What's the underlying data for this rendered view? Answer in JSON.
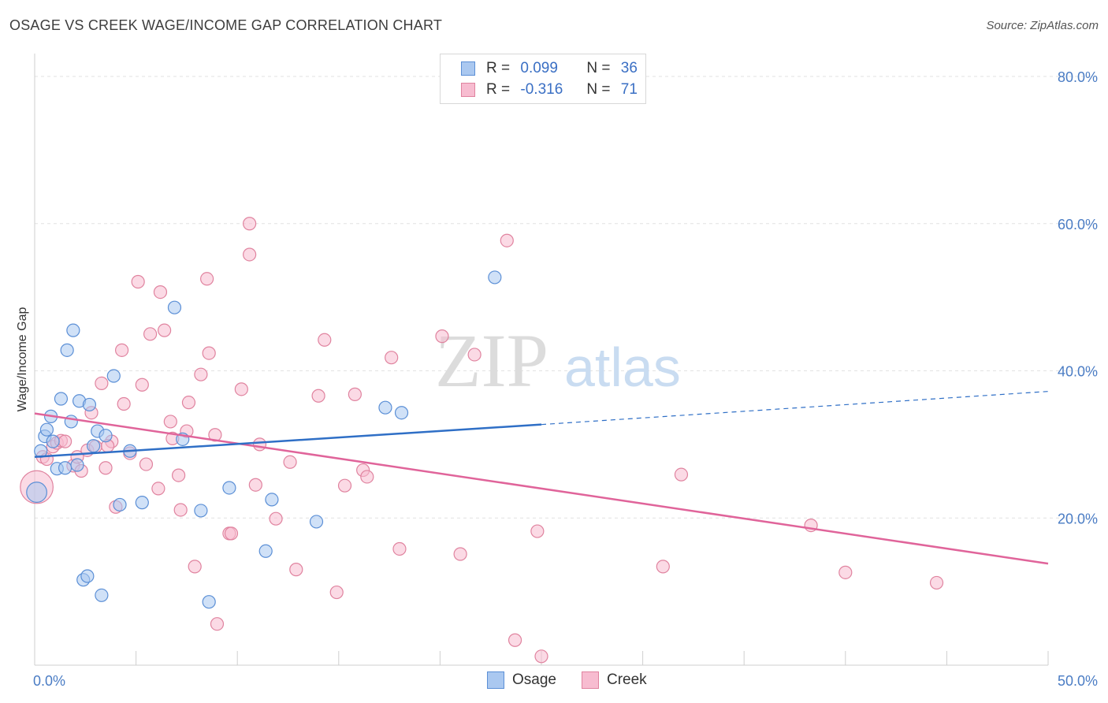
{
  "title": "OSAGE VS CREEK WAGE/INCOME GAP CORRELATION CHART",
  "source": "Source: ZipAtlas.com",
  "watermark": {
    "zip": "ZIP",
    "atlas": "atlas"
  },
  "legend_top": [
    {
      "r_label": "R =",
      "r_value": "0.099",
      "n_label": "N =",
      "n_value": "36"
    },
    {
      "r_label": "R =",
      "r_value": "-0.316",
      "n_label": "N =",
      "n_value": "71"
    }
  ],
  "legend_bottom": [
    "Osage",
    "Creek"
  ],
  "colors": {
    "osage_fill": "#aac8f0",
    "osage_stroke": "#5b8fd6",
    "osage_line": "#2f6fc6",
    "creek_fill": "#f7bcd0",
    "creek_stroke": "#e0839f",
    "creek_line": "#e0649a",
    "tick_text": "#4a7cc4",
    "grid": "#e2e2e2"
  },
  "chart_data": {
    "type": "scatter",
    "title": "OSAGE VS CREEK WAGE/INCOME GAP CORRELATION CHART",
    "xlabel": "",
    "ylabel": "Wage/Income Gap",
    "xlim": [
      0,
      50
    ],
    "ylim": [
      0,
      85
    ],
    "x_tick_labels": [
      "0.0%",
      "50.0%"
    ],
    "y_ticks": [
      20,
      40,
      60,
      80
    ],
    "y_tick_labels": [
      "20.0%",
      "40.0%",
      "60.0%",
      "80.0%"
    ],
    "grid": true,
    "legend_position": "top-center",
    "series": [
      {
        "name": "Osage",
        "r": 0.099,
        "n": 36,
        "trend": {
          "x0": 0,
          "y0": 28.3,
          "x1": 25,
          "y1": 32.7,
          "dashed_to_x": 50,
          "dashed_to_y": 37.2
        },
        "points": [
          [
            0.1,
            23.5,
            1.6
          ],
          [
            0.3,
            29.1,
            1
          ],
          [
            0.5,
            31.1,
            1
          ],
          [
            0.6,
            32.0,
            1
          ],
          [
            0.8,
            33.8,
            1
          ],
          [
            0.9,
            30.4,
            1
          ],
          [
            1.1,
            26.7,
            1
          ],
          [
            1.3,
            36.2,
            1
          ],
          [
            1.5,
            26.8,
            1
          ],
          [
            1.6,
            42.8,
            1
          ],
          [
            1.8,
            33.1,
            1
          ],
          [
            1.9,
            45.5,
            1
          ],
          [
            2.1,
            27.2,
            1
          ],
          [
            2.2,
            35.9,
            1
          ],
          [
            2.4,
            11.6,
            1
          ],
          [
            2.6,
            12.1,
            1
          ],
          [
            2.7,
            35.4,
            1
          ],
          [
            2.9,
            29.8,
            1
          ],
          [
            3.1,
            31.8,
            1
          ],
          [
            3.3,
            9.5,
            1
          ],
          [
            3.5,
            31.2,
            1
          ],
          [
            3.9,
            39.3,
            1
          ],
          [
            4.2,
            21.8,
            1
          ],
          [
            4.7,
            29.1,
            1
          ],
          [
            5.3,
            22.1,
            1
          ],
          [
            6.9,
            48.6,
            1
          ],
          [
            7.3,
            30.7,
            1
          ],
          [
            8.2,
            21.0,
            1
          ],
          [
            8.6,
            8.6,
            1
          ],
          [
            9.6,
            24.1,
            1
          ],
          [
            11.4,
            15.5,
            1
          ],
          [
            11.7,
            22.5,
            1
          ],
          [
            13.9,
            19.5,
            1
          ],
          [
            17.3,
            35.0,
            1
          ],
          [
            18.1,
            34.3,
            1
          ],
          [
            22.7,
            52.7,
            1
          ]
        ]
      },
      {
        "name": "Creek",
        "r": -0.316,
        "n": 71,
        "trend": {
          "x0": 0,
          "y0": 34.2,
          "x1": 50,
          "y1": 13.8
        },
        "points": [
          [
            0.1,
            24.2,
            2.6
          ],
          [
            0.4,
            28.3,
            1
          ],
          [
            0.6,
            28.0,
            1
          ],
          [
            0.9,
            29.7,
            1
          ],
          [
            1.1,
            30.2,
            1
          ],
          [
            1.3,
            30.5,
            1
          ],
          [
            1.5,
            30.4,
            1
          ],
          [
            1.9,
            27.1,
            1
          ],
          [
            2.1,
            28.3,
            1
          ],
          [
            2.3,
            26.4,
            1
          ],
          [
            2.6,
            29.2,
            1
          ],
          [
            2.8,
            34.3,
            1
          ],
          [
            3.0,
            29.7,
            1
          ],
          [
            3.3,
            38.3,
            1
          ],
          [
            3.5,
            26.8,
            1
          ],
          [
            3.8,
            30.4,
            1
          ],
          [
            4.0,
            21.5,
            1
          ],
          [
            4.3,
            42.8,
            1
          ],
          [
            4.4,
            35.5,
            1
          ],
          [
            4.7,
            28.8,
            1
          ],
          [
            5.1,
            52.1,
            1
          ],
          [
            5.3,
            38.1,
            1
          ],
          [
            5.5,
            27.3,
            1
          ],
          [
            5.7,
            45.0,
            1
          ],
          [
            6.1,
            24.0,
            1
          ],
          [
            6.2,
            50.7,
            1
          ],
          [
            6.4,
            45.5,
            1
          ],
          [
            6.7,
            33.1,
            1
          ],
          [
            6.8,
            30.8,
            1
          ],
          [
            7.1,
            25.8,
            1
          ],
          [
            7.2,
            21.1,
            1
          ],
          [
            7.5,
            31.8,
            1
          ],
          [
            7.6,
            35.7,
            1
          ],
          [
            7.9,
            13.4,
            1
          ],
          [
            8.2,
            39.5,
            1
          ],
          [
            8.5,
            52.5,
            1
          ],
          [
            8.6,
            42.4,
            1
          ],
          [
            8.9,
            31.3,
            1
          ],
          [
            9.0,
            5.6,
            1
          ],
          [
            9.6,
            17.9,
            1
          ],
          [
            9.7,
            17.9,
            1
          ],
          [
            10.2,
            37.5,
            1
          ],
          [
            10.6,
            55.8,
            1
          ],
          [
            10.6,
            60.0,
            1
          ],
          [
            10.9,
            24.5,
            1
          ],
          [
            11.1,
            30.0,
            1
          ],
          [
            11.9,
            19.9,
            1
          ],
          [
            12.6,
            27.6,
            1
          ],
          [
            12.9,
            13.0,
            1
          ],
          [
            14.0,
            36.6,
            1
          ],
          [
            14.3,
            44.2,
            1
          ],
          [
            14.9,
            9.9,
            1
          ],
          [
            15.3,
            24.4,
            1
          ],
          [
            15.8,
            36.8,
            1
          ],
          [
            16.2,
            26.5,
            1
          ],
          [
            16.4,
            25.6,
            1
          ],
          [
            17.6,
            41.8,
            1
          ],
          [
            18.0,
            15.8,
            1
          ],
          [
            20.1,
            44.7,
            1
          ],
          [
            21.0,
            15.1,
            1
          ],
          [
            21.7,
            42.2,
            1
          ],
          [
            23.3,
            57.7,
            1
          ],
          [
            23.7,
            3.4,
            1
          ],
          [
            24.8,
            18.2,
            1
          ],
          [
            25.0,
            1.2,
            1
          ],
          [
            31.0,
            13.4,
            1
          ],
          [
            31.9,
            25.9,
            1
          ],
          [
            38.3,
            19.0,
            1
          ],
          [
            40.0,
            12.6,
            1
          ],
          [
            44.5,
            11.2,
            1
          ],
          [
            3.6,
            29.8,
            1
          ]
        ]
      }
    ]
  }
}
